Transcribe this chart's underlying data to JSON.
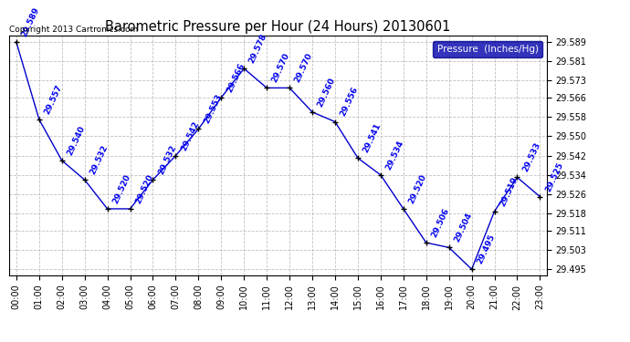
{
  "title": "Barometric Pressure per Hour (24 Hours) 20130601",
  "copyright": "Copyright 2013 Cartronics.com",
  "legend_label": "Pressure  (Inches/Hg)",
  "hours": [
    0,
    1,
    2,
    3,
    4,
    5,
    6,
    7,
    8,
    9,
    10,
    11,
    12,
    13,
    14,
    15,
    16,
    17,
    18,
    19,
    20,
    21,
    22,
    23
  ],
  "hour_labels": [
    "00:00",
    "01:00",
    "02:00",
    "03:00",
    "04:00",
    "05:00",
    "06:00",
    "07:00",
    "08:00",
    "09:00",
    "10:00",
    "11:00",
    "12:00",
    "13:00",
    "14:00",
    "15:00",
    "16:00",
    "17:00",
    "18:00",
    "19:00",
    "20:00",
    "21:00",
    "22:00",
    "23:00"
  ],
  "pressure": [
    29.589,
    29.557,
    29.54,
    29.532,
    29.52,
    29.52,
    29.532,
    29.542,
    29.553,
    29.566,
    29.578,
    29.57,
    29.57,
    29.56,
    29.556,
    29.541,
    29.534,
    29.52,
    29.506,
    29.504,
    29.495,
    29.519,
    29.533,
    29.525
  ],
  "ylim_min": 29.4925,
  "ylim_max": 29.5915,
  "yticks": [
    29.495,
    29.503,
    29.511,
    29.518,
    29.526,
    29.534,
    29.542,
    29.55,
    29.558,
    29.566,
    29.573,
    29.581,
    29.589
  ],
  "line_color": "#0000cc",
  "marker_color": "#000000",
  "bg_color": "#ffffff",
  "plot_bg_color": "#ffffff",
  "grid_color": "#b0b0b0",
  "title_color": "#000000",
  "label_color": "#0000ee",
  "legend_bg": "#0000aa",
  "legend_fg": "#ffffff",
  "title_fontsize": 10.5,
  "tick_fontsize": 7,
  "label_fontsize": 6.5
}
